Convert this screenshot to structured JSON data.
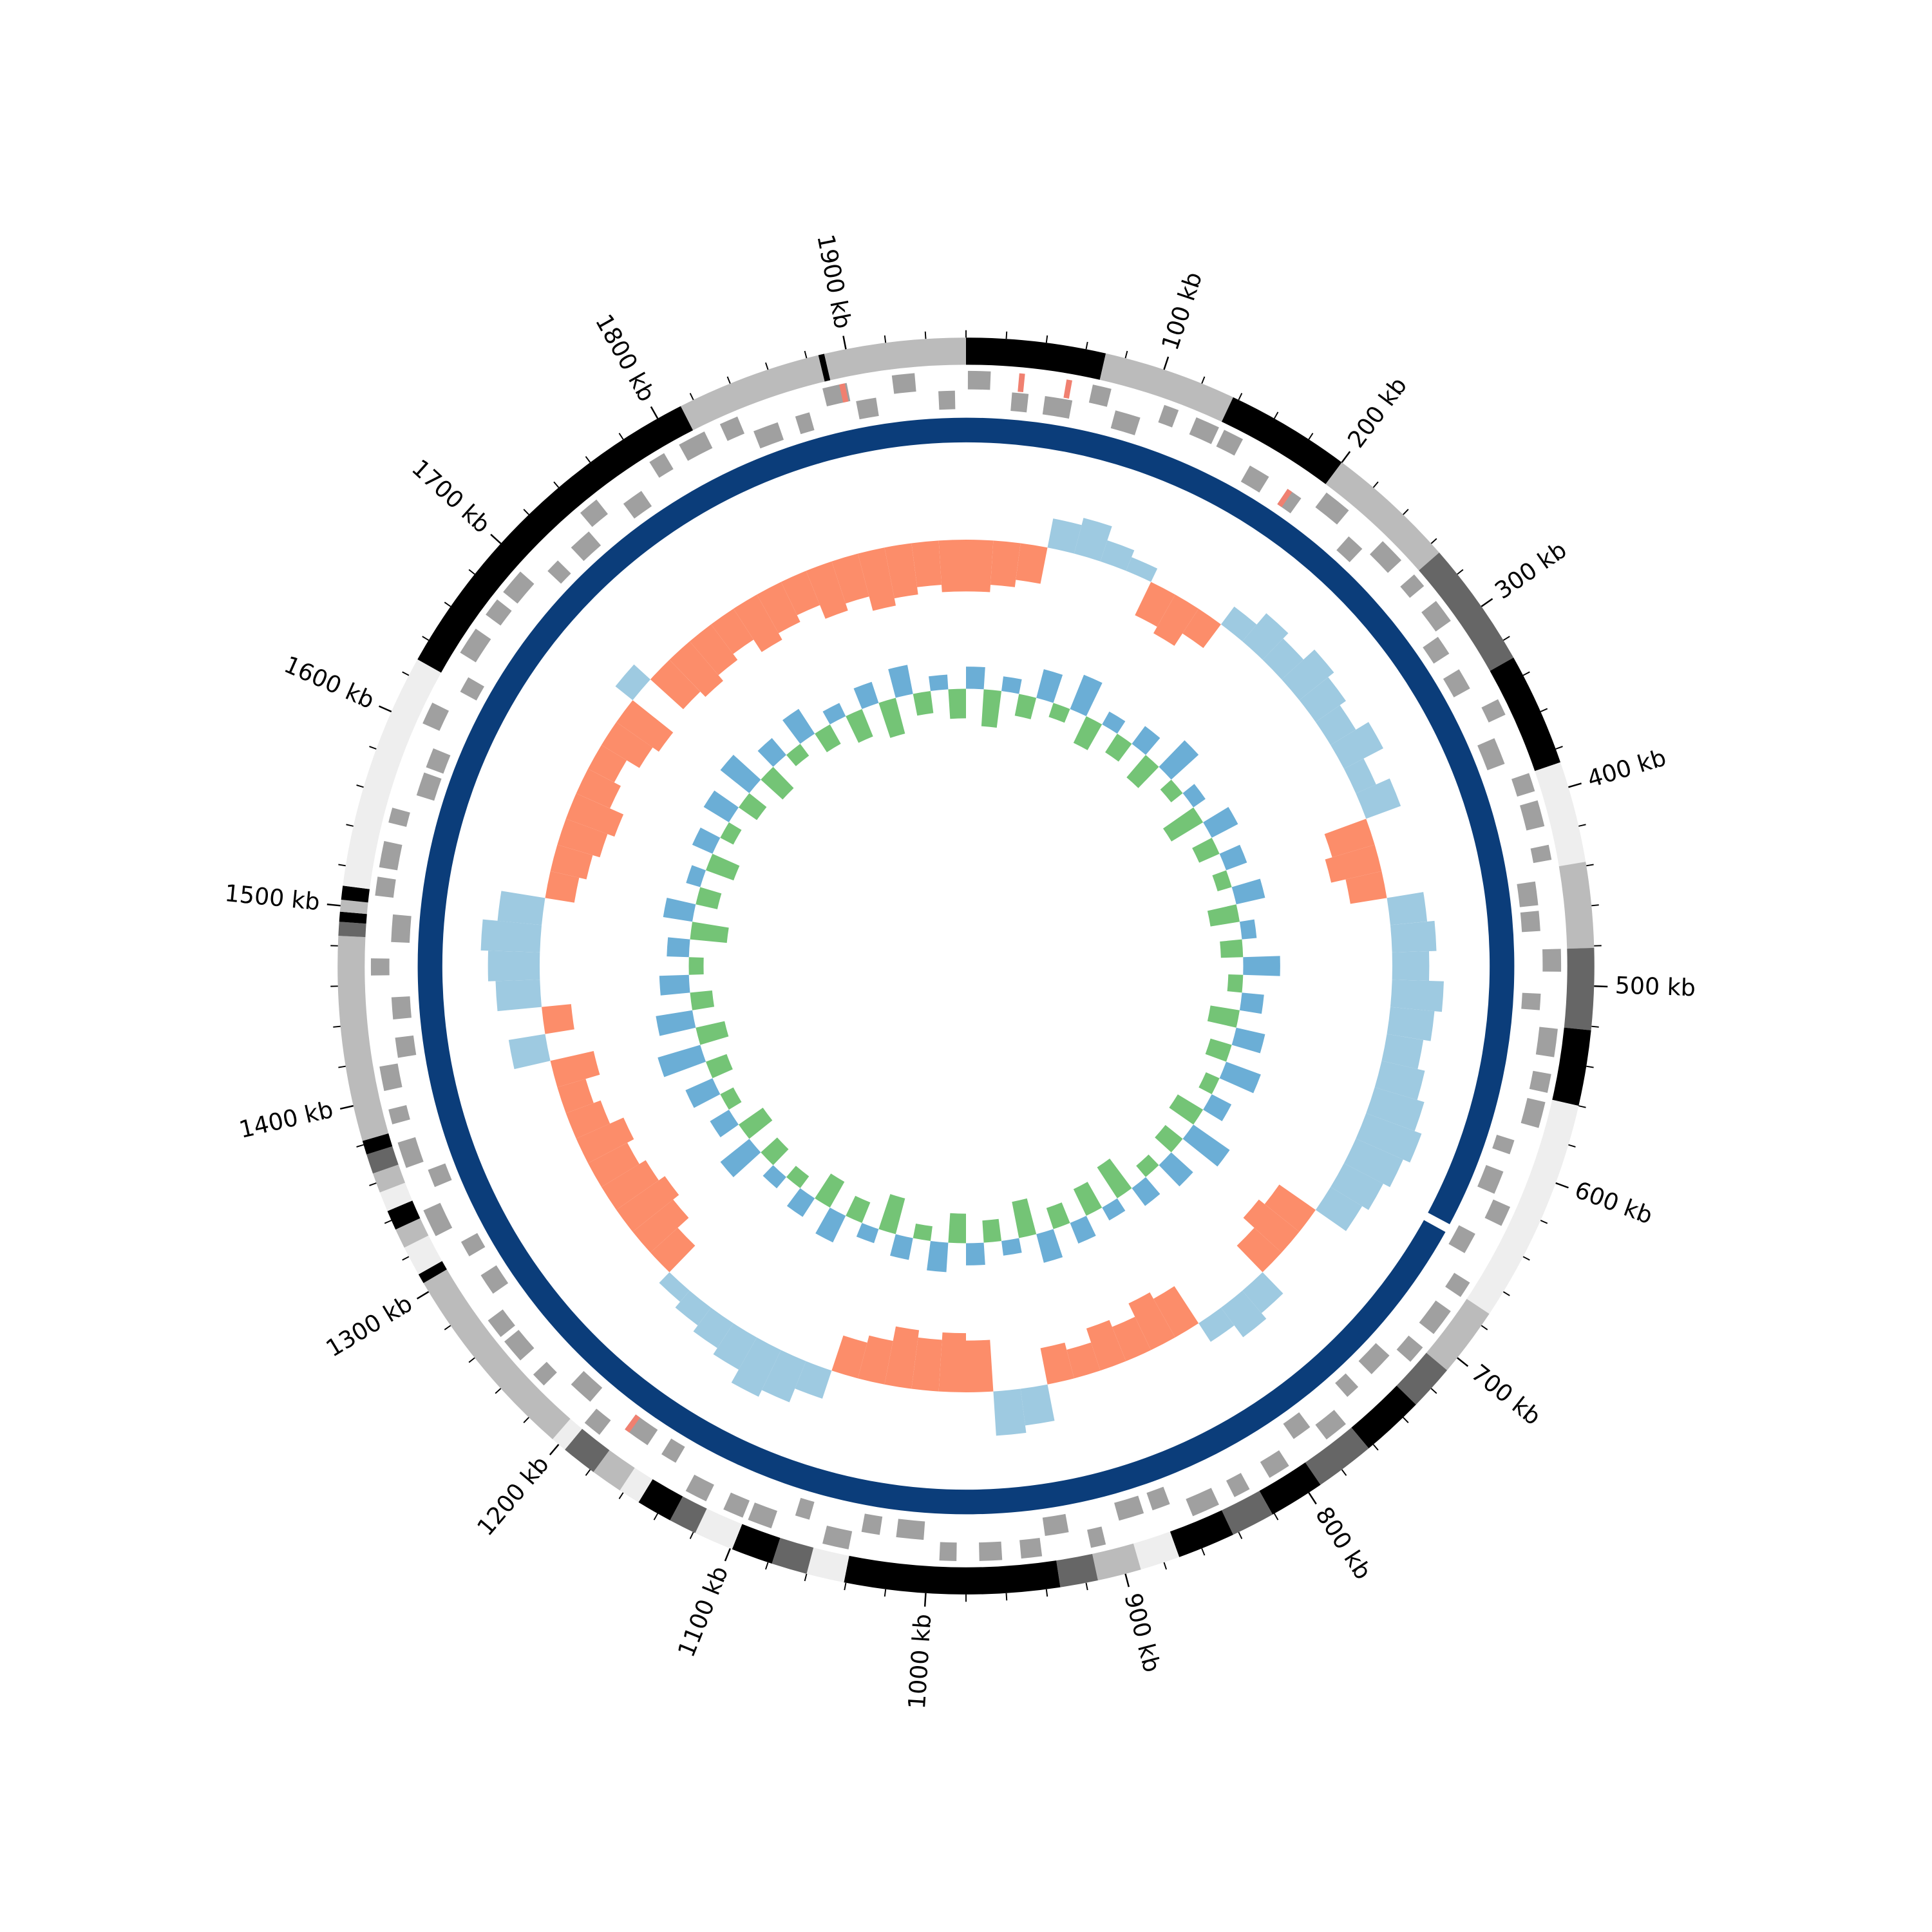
{
  "chart_data": {
    "type": "circular-genome",
    "xlim": [
      0,
      1960
    ],
    "xticks": [
      {
        "value": 100,
        "label": "100 kb"
      },
      {
        "value": 200,
        "label": "200 kb"
      },
      {
        "value": 300,
        "label": "300 kb"
      },
      {
        "value": 400,
        "label": "400 kb"
      },
      {
        "value": 500,
        "label": "500 kb"
      },
      {
        "value": 600,
        "label": "600 kb"
      },
      {
        "value": 700,
        "label": "700 kb"
      },
      {
        "value": 800,
        "label": "800 kb"
      },
      {
        "value": 900,
        "label": "900 kb"
      },
      {
        "value": 1000,
        "label": "1000 kb"
      },
      {
        "value": 1100,
        "label": "1100 kb"
      },
      {
        "value": 1200,
        "label": "1200 kb"
      },
      {
        "value": 1300,
        "label": "1300 kb"
      },
      {
        "value": 1400,
        "label": "1400 kb"
      },
      {
        "value": 1500,
        "label": "1500 kb"
      },
      {
        "value": 1600,
        "label": "1600 kb"
      },
      {
        "value": 1700,
        "label": "1700 kb"
      },
      {
        "value": 1800,
        "label": "1800 kb"
      },
      {
        "value": 1900,
        "label": "1900 kb"
      }
    ],
    "minor_xticks": [
      0,
      20,
      40,
      60,
      80,
      120,
      140,
      160,
      180,
      220,
      240,
      260,
      280,
      320,
      340,
      360,
      380,
      420,
      440,
      460,
      480,
      520,
      540,
      560,
      580,
      620,
      640,
      660,
      680,
      720,
      740,
      760,
      780,
      820,
      840,
      860,
      880,
      920,
      940,
      960,
      980,
      1020,
      1040,
      1060,
      1080,
      1120,
      1140,
      1160,
      1180,
      1220,
      1240,
      1260,
      1280,
      1320,
      1340,
      1360,
      1380,
      1420,
      1440,
      1460,
      1480,
      1520,
      1540,
      1560,
      1580,
      1620,
      1640,
      1660,
      1680,
      1720,
      1740,
      1760,
      1780,
      1820,
      1840,
      1860,
      1880,
      1920,
      1940
    ],
    "bands": [
      {
        "start": 0,
        "end": 70,
        "color": "#000000"
      },
      {
        "start": 70,
        "end": 137,
        "color": "#bbbbbb"
      },
      {
        "start": 137,
        "end": 200,
        "color": "#000000"
      },
      {
        "start": 200,
        "end": 266,
        "color": "#bbbbbb"
      },
      {
        "start": 266,
        "end": 330,
        "color": "#666666"
      },
      {
        "start": 330,
        "end": 387,
        "color": "#000000"
      },
      {
        "start": 387,
        "end": 438,
        "color": "#eeeeee"
      },
      {
        "start": 438,
        "end": 481,
        "color": "#bbbbbb"
      },
      {
        "start": 481,
        "end": 522,
        "color": "#666666"
      },
      {
        "start": 522,
        "end": 560,
        "color": "#000000"
      },
      {
        "start": 560,
        "end": 673,
        "color": "#eeeeee"
      },
      {
        "start": 673,
        "end": 708,
        "color": "#bbbbbb"
      },
      {
        "start": 708,
        "end": 731,
        "color": "#666666"
      },
      {
        "start": 731,
        "end": 763,
        "color": "#000000"
      },
      {
        "start": 763,
        "end": 793,
        "color": "#666666"
      },
      {
        "start": 793,
        "end": 821,
        "color": "#000000"
      },
      {
        "start": 821,
        "end": 843,
        "color": "#666666"
      },
      {
        "start": 843,
        "end": 872,
        "color": "#000000"
      },
      {
        "start": 872,
        "end": 892,
        "color": "#eeeeee"
      },
      {
        "start": 892,
        "end": 914,
        "color": "#bbbbbb"
      },
      {
        "start": 914,
        "end": 933,
        "color": "#666666"
      },
      {
        "start": 933,
        "end": 1041,
        "color": "#000000"
      },
      {
        "start": 1041,
        "end": 1060,
        "color": "#eeeeee"
      },
      {
        "start": 1060,
        "end": 1078,
        "color": "#666666"
      },
      {
        "start": 1078,
        "end": 1099,
        "color": "#000000"
      },
      {
        "start": 1099,
        "end": 1119,
        "color": "#eeeeee"
      },
      {
        "start": 1119,
        "end": 1133,
        "color": "#666666"
      },
      {
        "start": 1133,
        "end": 1151,
        "color": "#000000"
      },
      {
        "start": 1151,
        "end": 1162,
        "color": "#eeeeee"
      },
      {
        "start": 1162,
        "end": 1178,
        "color": "#bbbbbb"
      },
      {
        "start": 1178,
        "end": 1196,
        "color": "#666666"
      },
      {
        "start": 1196,
        "end": 1204,
        "color": "#eeeeee"
      },
      {
        "start": 1204,
        "end": 1305,
        "color": "#bbbbbb"
      },
      {
        "start": 1305,
        "end": 1310,
        "color": "#000000"
      },
      {
        "start": 1310,
        "end": 1325,
        "color": "#eeeeee"
      },
      {
        "start": 1325,
        "end": 1335,
        "color": "#bbbbbb"
      },
      {
        "start": 1335,
        "end": 1345,
        "color": "#000000"
      },
      {
        "start": 1345,
        "end": 1355,
        "color": "#eeeeee"
      },
      {
        "start": 1355,
        "end": 1365,
        "color": "#bbbbbb"
      },
      {
        "start": 1365,
        "end": 1375,
        "color": "#666666"
      },
      {
        "start": 1375,
        "end": 1382,
        "color": "#000000"
      },
      {
        "start": 1382,
        "end": 1485,
        "color": "#bbbbbb"
      },
      {
        "start": 1485,
        "end": 1492,
        "color": "#666666"
      },
      {
        "start": 1492,
        "end": 1497,
        "color": "#000000"
      },
      {
        "start": 1497,
        "end": 1503,
        "color": "#bbbbbb"
      },
      {
        "start": 1503,
        "end": 1510,
        "color": "#000000"
      },
      {
        "start": 1510,
        "end": 1629,
        "color": "#eeeeee"
      },
      {
        "start": 1629,
        "end": 1813,
        "color": "#000000"
      },
      {
        "start": 1813,
        "end": 1886,
        "color": "#bbbbbb"
      },
      {
        "start": 1886,
        "end": 1889,
        "color": "#000000"
      },
      {
        "start": 1889,
        "end": 1960,
        "color": "#bbbbbb"
      }
    ],
    "gene_color": "#a0a0a0",
    "genes": [
      [
        1,
        13,
        1
      ],
      [
        25,
        34,
        -1
      ],
      [
        43,
        58,
        -1
      ],
      [
        67,
        77,
        1
      ],
      [
        82,
        96,
        -1
      ],
      [
        106,
        114,
        1
      ],
      [
        124,
        137,
        1
      ],
      [
        140,
        151,
        1
      ],
      [
        161,
        173,
        -1
      ],
      [
        185,
        194,
        -1
      ],
      [
        203,
        218,
        1
      ],
      [
        227,
        237,
        -1
      ],
      [
        242,
        256,
        1
      ],
      [
        266,
        274,
        1
      ],
      [
        284,
        297,
        1
      ],
      [
        300,
        311,
        -1
      ],
      [
        321,
        333,
        -1
      ],
      [
        345,
        354,
        1
      ],
      [
        363,
        378,
        -1
      ],
      [
        387,
        397,
        1
      ],
      [
        402,
        416,
        1
      ],
      [
        426,
        434,
        1
      ],
      [
        444,
        457,
        -1
      ],
      [
        460,
        471,
        -1
      ],
      [
        481,
        493,
        1
      ],
      [
        505,
        514,
        -1
      ],
      [
        523,
        538,
        1
      ],
      [
        547,
        557,
        1
      ],
      [
        562,
        576,
        1
      ],
      [
        586,
        594,
        -1
      ],
      [
        604,
        617,
        -1
      ],
      [
        620,
        631,
        1
      ],
      [
        641,
        653,
        -1
      ],
      [
        665,
        674,
        1
      ],
      [
        683,
        698,
        1
      ],
      [
        707,
        717,
        1
      ],
      [
        722,
        736,
        -1
      ],
      [
        746,
        754,
        -1
      ],
      [
        764,
        777,
        1
      ],
      [
        780,
        791,
        -1
      ],
      [
        801,
        813,
        1
      ],
      [
        825,
        834,
        1
      ],
      [
        843,
        858,
        1
      ],
      [
        867,
        877,
        -1
      ],
      [
        882,
        896,
        -1
      ],
      [
        906,
        914,
        1
      ],
      [
        924,
        937,
        -1
      ],
      [
        940,
        951,
        1
      ],
      [
        961,
        973,
        1
      ],
      [
        985,
        994,
        1
      ],
      [
        1003,
        1018,
        -1
      ],
      [
        1027,
        1037,
        -1
      ],
      [
        1042,
        1056,
        1
      ],
      [
        1066,
        1074,
        -1
      ],
      [
        1084,
        1097,
        1
      ],
      [
        1100,
        1111,
        1
      ],
      [
        1121,
        1133,
        1
      ],
      [
        1145,
        1154,
        -1
      ],
      [
        1163,
        1178,
        -1
      ],
      [
        1187,
        1197,
        1
      ],
      [
        1202,
        1216,
        -1
      ],
      [
        1226,
        1234,
        1
      ],
      [
        1244,
        1257,
        1
      ],
      [
        1260,
        1271,
        1
      ],
      [
        1281,
        1293,
        -1
      ],
      [
        1305,
        1314,
        -1
      ],
      [
        1323,
        1338,
        1
      ],
      [
        1347,
        1357,
        -1
      ],
      [
        1362,
        1376,
        1
      ],
      [
        1386,
        1394,
        1
      ],
      [
        1404,
        1417,
        1
      ],
      [
        1420,
        1431,
        -1
      ],
      [
        1441,
        1453,
        -1
      ],
      [
        1465,
        1474,
        1
      ],
      [
        1483,
        1498,
        -1
      ],
      [
        1507,
        1517,
        1
      ],
      [
        1522,
        1536,
        1
      ],
      [
        1546,
        1554,
        1
      ],
      [
        1564,
        1577,
        -1
      ],
      [
        1580,
        1591,
        -1
      ],
      [
        1601,
        1613,
        1
      ],
      [
        1625,
        1634,
        -1
      ],
      [
        1643,
        1658,
        1
      ],
      [
        1667,
        1677,
        1
      ],
      [
        1682,
        1696,
        1
      ],
      [
        1706,
        1714,
        -1
      ],
      [
        1724,
        1737,
        -1
      ],
      [
        1740,
        1751,
        1
      ],
      [
        1761,
        1773,
        -1
      ],
      [
        1785,
        1794,
        1
      ],
      [
        1803,
        1818,
        1
      ],
      [
        1827,
        1837,
        1
      ],
      [
        1842,
        1856,
        -1
      ],
      [
        1866,
        1874,
        -1
      ],
      [
        1884,
        1897,
        1
      ],
      [
        1900,
        1911,
        -1
      ],
      [
        1921,
        1933,
        1
      ],
      [
        1945,
        1954,
        -1
      ]
    ],
    "rna_color": "#f08070",
    "rna_genes": [
      [
        28,
        31,
        1
      ],
      [
        53,
        56,
        1
      ],
      [
        185,
        188,
        -1
      ],
      [
        1175,
        1178,
        -1
      ],
      [
        1893,
        1896,
        1
      ]
    ],
    "ring": {
      "color": "#0b3d7a",
      "segments": [
        [
          0,
          643
        ],
        [
          648,
          1960
        ]
      ]
    },
    "window_bins": [
      0,
      20,
      40,
      60,
      80,
      100,
      120,
      140,
      160,
      180,
      200,
      220,
      240,
      260,
      280,
      300,
      320,
      340,
      360,
      380,
      400,
      420,
      440,
      460,
      480,
      500,
      520,
      540,
      560,
      580,
      600,
      620,
      640,
      660,
      680,
      700,
      720,
      740,
      760,
      780,
      800,
      820,
      840,
      860,
      880,
      900,
      920,
      940,
      960,
      980,
      1000,
      1020,
      1040,
      1060,
      1080,
      1100,
      1120,
      1140,
      1160,
      1180,
      1200,
      1220,
      1240,
      1260,
      1280,
      1300,
      1320,
      1340,
      1360,
      1380,
      1400,
      1420,
      1440,
      1460,
      1480,
      1500,
      1520,
      1540,
      1560,
      1580,
      1600,
      1620,
      1640,
      1660,
      1680,
      1700,
      1720,
      1740,
      1760,
      1780,
      1800,
      1820,
      1840,
      1860,
      1880,
      1900,
      1920,
      1940,
      1960
    ],
    "gc_skew": {
      "ylim": [
        -0.1,
        0.1
      ],
      "positive_color": "#9ecae1",
      "negative_color": "#fc8d6a",
      "values": [
        -0.07,
        -0.06,
        -0.05,
        0.04,
        0.05,
        0.03,
        0.02,
        -0.05,
        -0.06,
        -0.04,
        0.03,
        0.05,
        0.04,
        0.06,
        0.05,
        0.04,
        0.06,
        0.03,
        0.05,
        -0.06,
        -0.07,
        -0.05,
        0.05,
        0.06,
        0.05,
        0.07,
        0.06,
        0.05,
        0.06,
        0.07,
        0.08,
        0.07,
        0.06,
        0.05,
        -0.06,
        -0.07,
        -0.05,
        0.04,
        0.05,
        0.03,
        -0.06,
        -0.07,
        -0.05,
        -0.06,
        -0.04,
        -0.05,
        0.05,
        0.06,
        -0.07,
        -0.08,
        -0.07,
        -0.08,
        -0.06,
        -0.05,
        0.04,
        0.06,
        0.07,
        0.05,
        0.04,
        0.03,
        0.02,
        -0.05,
        -0.07,
        -0.08,
        -0.07,
        -0.06,
        -0.07,
        -0.05,
        -0.04,
        -0.06,
        0.05,
        -0.04,
        0.06,
        0.07,
        0.08,
        0.06,
        -0.04,
        -0.05,
        -0.06,
        -0.07,
        -0.05,
        -0.04,
        -0.06,
        -0.07,
        0.03,
        -0.06,
        -0.07,
        -0.06,
        -0.05,
        -0.07,
        -0.06,
        -0.05,
        -0.07,
        -0.06,
        -0.08,
        -0.07,
        -0.06,
        -0.07
      ]
    },
    "gc_content": {
      "ylim": [
        -0.1,
        0.1
      ],
      "positive_color": "#6baed6",
      "negative_color": "#74c476",
      "values": [
        0.03,
        -0.05,
        0.02,
        -0.03,
        0.04,
        -0.02,
        0.05,
        -0.04,
        0.02,
        -0.03,
        0.03,
        -0.04,
        0.05,
        -0.02,
        0.02,
        -0.05,
        0.04,
        -0.03,
        0.03,
        -0.02,
        0.04,
        -0.04,
        0.02,
        -0.03,
        0.05,
        -0.02,
        0.03,
        -0.04,
        0.04,
        -0.03,
        0.05,
        -0.02,
        0.03,
        -0.04,
        0.06,
        -0.03,
        0.04,
        -0.02,
        0.03,
        -0.05,
        0.02,
        -0.04,
        0.03,
        -0.03,
        0.04,
        -0.05,
        0.02,
        -0.03,
        0.03,
        -0.04,
        0.04,
        -0.02,
        0.03,
        -0.05,
        0.02,
        -0.03,
        0.04,
        -0.04,
        0.03,
        -0.02,
        0.02,
        -0.03,
        0.05,
        -0.04,
        0.03,
        -0.02,
        0.04,
        -0.03,
        0.06,
        -0.04,
        0.05,
        -0.03,
        0.04,
        -0.02,
        0.03,
        -0.05,
        0.04,
        -0.03,
        0.02,
        -0.04,
        0.03,
        -0.02,
        0.04,
        -0.03,
        0.05,
        -0.04,
        0.03,
        -0.02,
        0.04,
        -0.03,
        0.02,
        -0.04,
        0.03,
        -0.05,
        0.04,
        -0.03,
        0.02,
        -0.04
      ]
    }
  }
}
